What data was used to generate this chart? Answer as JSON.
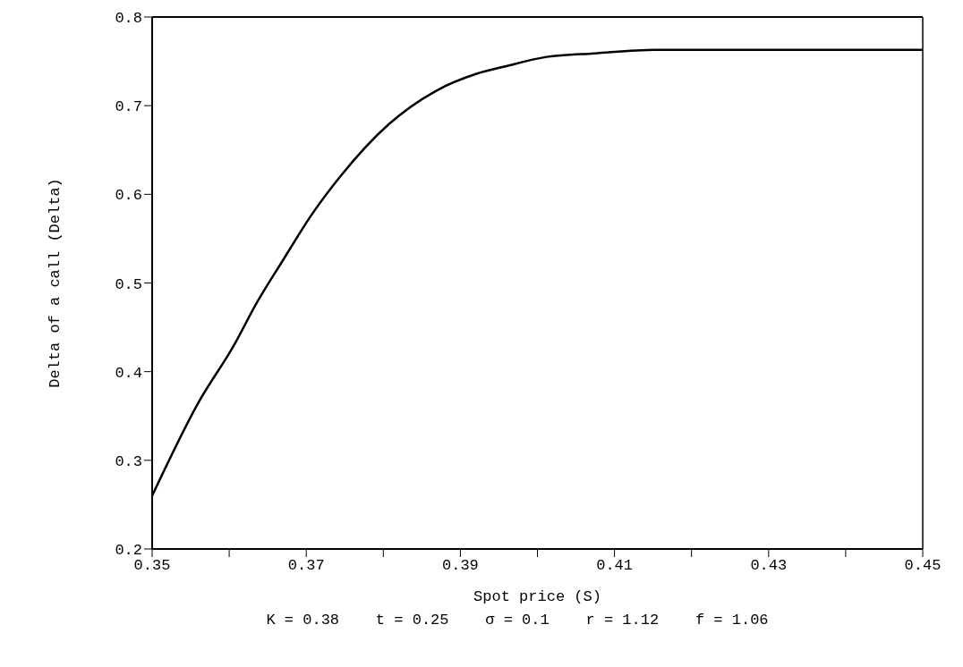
{
  "chart_data": {
    "type": "line",
    "xlabel": "Spot price (S)",
    "ylabel": "Delta of a call (Delta)",
    "x": [
      0.35,
      0.356,
      0.3607,
      0.3634,
      0.367,
      0.3707,
      0.3744,
      0.3807,
      0.3867,
      0.3921,
      0.3957,
      0.4012,
      0.4074,
      0.4152,
      0.425,
      0.45
    ],
    "series": [
      {
        "color": "#000000",
        "values": [
          0.26,
          0.365,
          0.431,
          0.475,
          0.526,
          0.577,
          0.62,
          0.679,
          0.716,
          0.736,
          0.744,
          0.755,
          0.759,
          0.763,
          0.763,
          0.763
        ]
      }
    ],
    "xlim": [
      0.35,
      0.45
    ],
    "xticks": [
      0.35,
      {
        "value": 0.36,
        "label": null
      },
      0.37,
      {
        "value": 0.38,
        "label": null
      },
      0.39,
      {
        "value": 0.4,
        "label": null
      },
      0.41,
      {
        "value": 0.42,
        "label": null
      },
      0.43,
      {
        "value": 0.44,
        "label": null
      },
      0.45
    ],
    "ylim": [
      0.2,
      0.8
    ],
    "yticks": [
      0.2,
      0.3,
      0.4,
      0.5,
      0.6,
      0.7,
      0.8
    ],
    "marker": "none",
    "line_style": "solid",
    "grid": false,
    "annotations": [
      "K = 0.38    t = 0.25    σ = 0.1    r = 1.12    f = 1.06"
    ]
  }
}
